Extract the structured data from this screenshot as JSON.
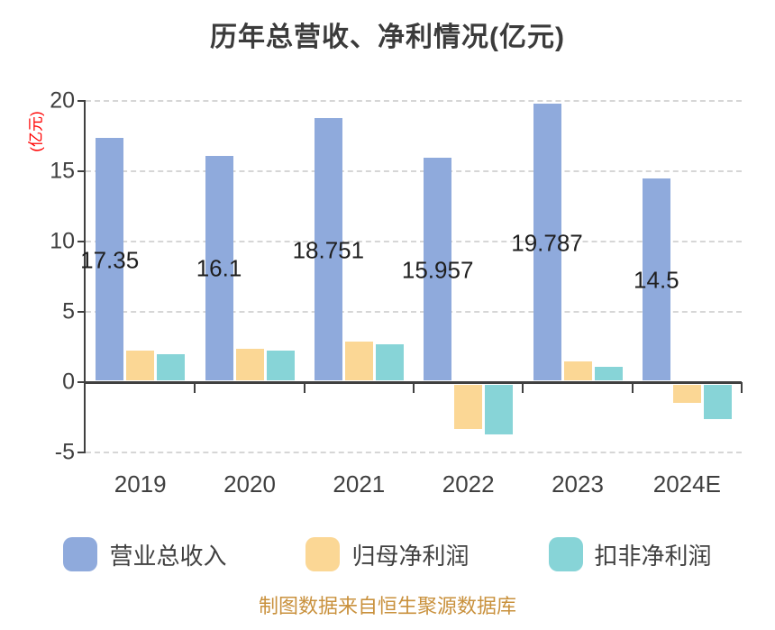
{
  "title": "历年总营收、净利情况(亿元)",
  "footer": {
    "text": "制图数据来自恒生聚源数据库",
    "color": "#c9913d"
  },
  "y_axis": {
    "label": "(亿元)",
    "label_color": "#ff0000",
    "ticks": [
      20,
      15,
      10,
      5,
      0,
      -5
    ]
  },
  "chart_data": {
    "type": "bar",
    "title": "历年总营收、净利情况(亿元)",
    "ylabel": "(亿元)",
    "ylim": [
      -5,
      20
    ],
    "grid": "horizontal-dashed",
    "legend_position": "bottom",
    "categories": [
      "2019",
      "2020",
      "2021",
      "2022",
      "2023",
      "2024E"
    ],
    "series": [
      {
        "name": "营业总收入",
        "color": "#8FAADC",
        "values": [
          17.35,
          16.1,
          18.751,
          15.957,
          19.787,
          14.5
        ],
        "labels": [
          "17.35",
          "16.1",
          "18.751",
          "15.957",
          "19.787",
          "14.5"
        ]
      },
      {
        "name": "归母净利润",
        "color": "#FBD795",
        "values": [
          2.25,
          2.4,
          2.9,
          -3.35,
          1.5,
          -1.5
        ]
      },
      {
        "name": "扣非净利润",
        "color": "#87D4D7",
        "values": [
          2.0,
          2.25,
          2.7,
          -3.7,
          1.1,
          -2.6
        ]
      }
    ]
  }
}
